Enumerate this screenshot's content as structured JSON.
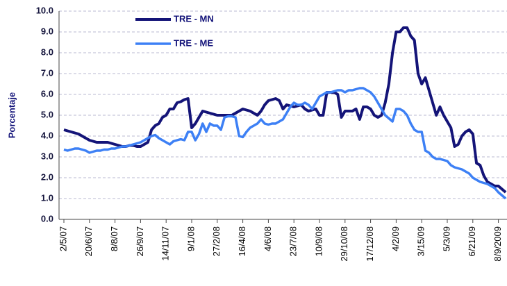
{
  "chart_data": {
    "type": "line",
    "y_label": "Porcentaje",
    "categories": [
      "2/5/07",
      null,
      null,
      null,
      null,
      null,
      null,
      "20/6/07",
      null,
      null,
      null,
      null,
      null,
      null,
      "8/8/07",
      null,
      null,
      null,
      null,
      null,
      null,
      "26/9/07",
      null,
      null,
      null,
      null,
      null,
      null,
      "14/11/07",
      null,
      null,
      null,
      null,
      null,
      null,
      "9/1/08",
      null,
      null,
      null,
      null,
      null,
      null,
      "27/2/08",
      null,
      null,
      null,
      null,
      null,
      null,
      "16/4/08",
      null,
      null,
      null,
      null,
      null,
      null,
      "4/6/08",
      null,
      null,
      null,
      null,
      null,
      null,
      "23/7/08",
      null,
      null,
      null,
      null,
      null,
      null,
      "10/9/08",
      null,
      null,
      null,
      null,
      null,
      null,
      "29/10/08",
      null,
      null,
      null,
      null,
      null,
      null,
      "17/12/08",
      null,
      null,
      null,
      null,
      null,
      null,
      "4/2/09",
      null,
      null,
      null,
      null,
      null,
      null,
      "3/15/09",
      null,
      null,
      null,
      null,
      null,
      null,
      "5/3/09",
      null,
      null,
      null,
      null,
      null,
      null,
      "6/21/09",
      null,
      null,
      null,
      null,
      null,
      null,
      "8/9/2009",
      null,
      null
    ],
    "series": [
      {
        "name": "TRE - MN",
        "color": "#141478",
        "values": [
          4.3,
          4.25,
          4.2,
          4.15,
          4.1,
          4.0,
          3.9,
          3.8,
          3.75,
          3.7,
          3.7,
          3.7,
          3.7,
          3.65,
          3.6,
          3.55,
          3.5,
          3.5,
          3.55,
          3.55,
          3.5,
          3.5,
          3.6,
          3.7,
          4.3,
          4.5,
          4.6,
          4.9,
          5.0,
          5.3,
          5.3,
          5.6,
          5.65,
          5.75,
          5.8,
          4.4,
          4.6,
          4.9,
          5.2,
          5.15,
          5.1,
          5.05,
          5.0,
          5.0,
          5.0,
          5.0,
          5.0,
          5.1,
          5.2,
          5.3,
          5.25,
          5.2,
          5.1,
          5.0,
          5.2,
          5.5,
          5.7,
          5.75,
          5.8,
          5.7,
          5.3,
          5.5,
          5.45,
          5.4,
          5.45,
          5.5,
          5.3,
          5.2,
          5.25,
          5.3,
          5.0,
          5.0,
          6.1,
          6.1,
          6.1,
          6.0,
          4.9,
          5.2,
          5.2,
          5.2,
          5.3,
          4.8,
          5.4,
          5.4,
          5.3,
          5.0,
          4.9,
          5.0,
          5.6,
          6.5,
          8.0,
          9.0,
          9.0,
          9.2,
          9.2,
          8.8,
          8.6,
          7.0,
          6.5,
          6.8,
          6.2,
          5.6,
          5.0,
          5.4,
          5.0,
          4.7,
          4.4,
          3.5,
          3.6,
          4.0,
          4.2,
          4.3,
          4.1,
          2.7,
          2.6,
          2.1,
          1.8,
          1.7,
          1.6,
          1.6,
          1.45,
          1.3
        ]
      },
      {
        "name": "TRE - ME",
        "color": "#3d80f5",
        "values": [
          3.35,
          3.3,
          3.35,
          3.4,
          3.4,
          3.35,
          3.3,
          3.2,
          3.25,
          3.3,
          3.3,
          3.35,
          3.35,
          3.4,
          3.4,
          3.45,
          3.5,
          3.5,
          3.55,
          3.6,
          3.65,
          3.7,
          3.8,
          3.9,
          4.0,
          4.05,
          3.9,
          3.8,
          3.7,
          3.6,
          3.75,
          3.8,
          3.85,
          3.8,
          4.2,
          4.2,
          3.8,
          4.1,
          4.6,
          4.2,
          4.6,
          4.5,
          4.5,
          4.3,
          4.9,
          4.95,
          4.95,
          4.9,
          4.0,
          3.95,
          4.2,
          4.4,
          4.5,
          4.6,
          4.8,
          4.6,
          4.55,
          4.6,
          4.6,
          4.7,
          4.8,
          5.1,
          5.4,
          5.6,
          5.5,
          5.5,
          5.6,
          5.5,
          5.3,
          5.6,
          5.9,
          6.0,
          6.1,
          6.1,
          6.15,
          6.2,
          6.2,
          6.1,
          6.2,
          6.2,
          6.25,
          6.3,
          6.3,
          6.2,
          6.1,
          5.9,
          5.6,
          5.3,
          5.0,
          4.85,
          4.7,
          5.3,
          5.3,
          5.2,
          5.0,
          4.6,
          4.3,
          4.2,
          4.2,
          3.3,
          3.2,
          3.0,
          2.9,
          2.9,
          2.85,
          2.8,
          2.6,
          2.5,
          2.45,
          2.4,
          2.3,
          2.2,
          2.0,
          1.9,
          1.8,
          1.75,
          1.7,
          1.6,
          1.5,
          1.3,
          1.15,
          1.0
        ]
      }
    ],
    "ylim": [
      0,
      10
    ],
    "yticks": [
      {
        "value": 0,
        "label": "0.0"
      },
      {
        "value": 1,
        "label": "1.0"
      },
      {
        "value": 2,
        "label": "2.0"
      },
      {
        "value": 3,
        "label": "3.0"
      },
      {
        "value": 4,
        "label": "4.0"
      },
      {
        "value": 5,
        "label": "5.0"
      },
      {
        "value": 6,
        "label": "6.0"
      },
      {
        "value": 7,
        "label": "7.0"
      },
      {
        "value": 8,
        "label": "8.0"
      },
      {
        "value": 9,
        "label": "9.0"
      },
      {
        "value": 10,
        "label": "10.0"
      }
    ],
    "grid": true,
    "legend": "top-left"
  }
}
